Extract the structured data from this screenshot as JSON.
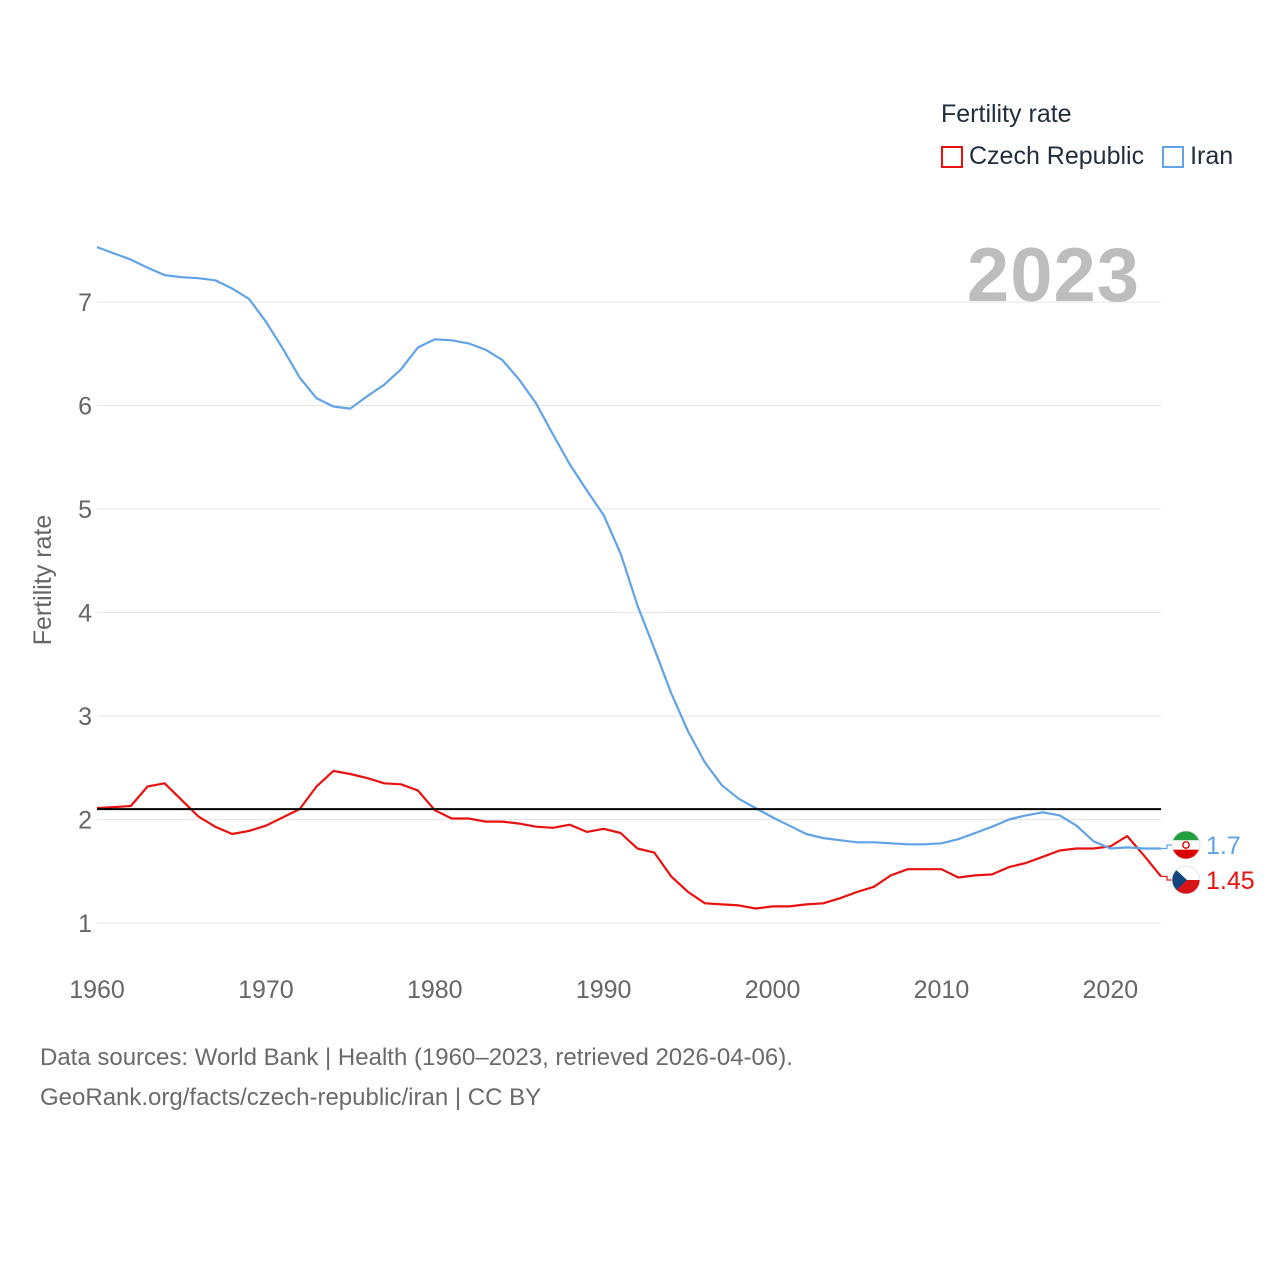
{
  "legend": {
    "title": "Fertility rate",
    "items": [
      {
        "label": "Czech Republic",
        "color": "#e8110f"
      },
      {
        "label": "Iran",
        "color": "#60a3e6"
      }
    ]
  },
  "year_label": "2023",
  "footer": {
    "line1": "Data sources: World Bank | Health (1960–2023, retrieved 2026-04-06).",
    "line2": "GeoRank.org/facts/czech-republic/iran | CC BY"
  },
  "chart_data": {
    "type": "line",
    "title": "Fertility rate",
    "xlabel": "",
    "ylabel": "Fertility rate",
    "xlim": [
      1960,
      2023
    ],
    "ylim": [
      0.6,
      7.6
    ],
    "yticks": [
      1,
      2,
      3,
      4,
      5,
      6,
      7
    ],
    "xticks": [
      1960,
      1970,
      1980,
      1990,
      2000,
      2010,
      2020
    ],
    "reference_line": 2.1,
    "x": [
      1960,
      1961,
      1962,
      1963,
      1964,
      1965,
      1966,
      1967,
      1968,
      1969,
      1970,
      1971,
      1972,
      1973,
      1974,
      1975,
      1976,
      1977,
      1978,
      1979,
      1980,
      1981,
      1982,
      1983,
      1984,
      1985,
      1986,
      1987,
      1988,
      1989,
      1990,
      1991,
      1992,
      1993,
      1994,
      1995,
      1996,
      1997,
      1998,
      1999,
      2000,
      2001,
      2002,
      2003,
      2004,
      2005,
      2006,
      2007,
      2008,
      2009,
      2010,
      2011,
      2012,
      2013,
      2014,
      2015,
      2016,
      2017,
      2018,
      2019,
      2020,
      2021,
      2022,
      2023
    ],
    "series": [
      {
        "name": "Czech Republic",
        "color": "#e8110f",
        "end_label": "1.45",
        "values": [
          2.11,
          2.12,
          2.13,
          2.32,
          2.35,
          2.19,
          2.03,
          1.93,
          1.86,
          1.89,
          1.94,
          2.02,
          2.1,
          2.32,
          2.47,
          2.44,
          2.4,
          2.35,
          2.34,
          2.28,
          2.09,
          2.01,
          2.01,
          1.98,
          1.98,
          1.96,
          1.93,
          1.92,
          1.95,
          1.88,
          1.91,
          1.87,
          1.72,
          1.68,
          1.45,
          1.3,
          1.19,
          1.18,
          1.17,
          1.14,
          1.16,
          1.16,
          1.18,
          1.19,
          1.24,
          1.3,
          1.35,
          1.46,
          1.52,
          1.52,
          1.52,
          1.44,
          1.46,
          1.47,
          1.54,
          1.58,
          1.64,
          1.7,
          1.72,
          1.72,
          1.74,
          1.84,
          1.65,
          1.45
        ]
      },
      {
        "name": "Iran",
        "color": "#60a3e6",
        "end_label": "1.7",
        "values": [
          7.53,
          7.47,
          7.41,
          7.33,
          7.26,
          7.24,
          7.23,
          7.21,
          7.13,
          7.03,
          6.81,
          6.55,
          6.27,
          6.07,
          5.99,
          5.97,
          6.09,
          6.2,
          6.35,
          6.56,
          6.64,
          6.63,
          6.6,
          6.54,
          6.44,
          6.25,
          6.02,
          5.72,
          5.43,
          5.18,
          4.94,
          4.57,
          4.07,
          3.65,
          3.22,
          2.85,
          2.55,
          2.33,
          2.2,
          2.11,
          2.02,
          1.94,
          1.86,
          1.82,
          1.8,
          1.78,
          1.78,
          1.77,
          1.76,
          1.76,
          1.77,
          1.81,
          1.87,
          1.93,
          2.0,
          2.04,
          2.07,
          2.04,
          1.94,
          1.79,
          1.72,
          1.73,
          1.72,
          1.72
        ]
      }
    ]
  }
}
